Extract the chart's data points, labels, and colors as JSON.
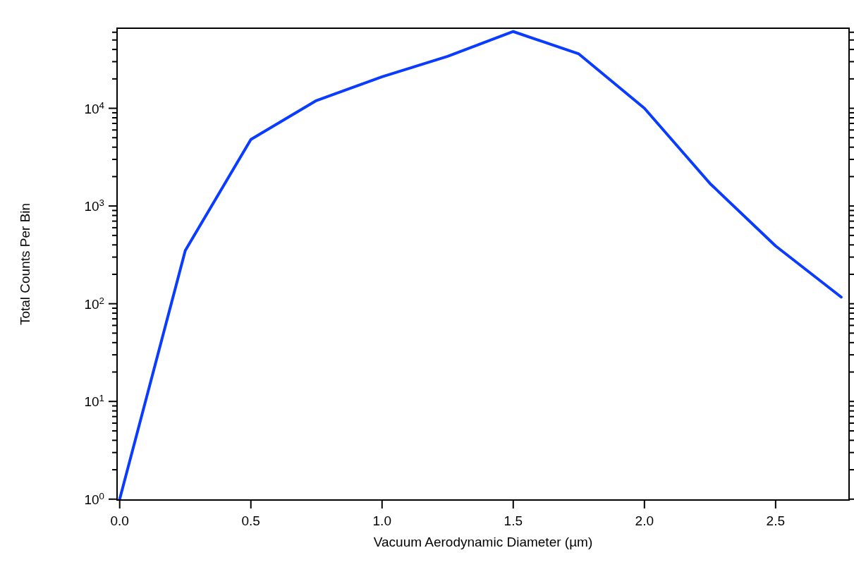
{
  "chart_data": {
    "type": "line",
    "xlabel": "Vacuum Aerodynamic Diameter (µm)",
    "ylabel": "Total Counts Per Bin",
    "log": "y",
    "grid": false,
    "marker": "none",
    "line_style": "solid",
    "x": [
      0,
      0.25,
      0.5,
      0.75,
      1.0,
      1.25,
      1.5,
      1.75,
      2.0,
      2.25,
      2.5,
      2.75
    ],
    "series": [
      {
        "color": "#0a3cff",
        "values": [
          1,
          350,
          4800,
          12000,
          21000,
          34000,
          61000,
          36000,
          10000,
          1700,
          390,
          117
        ]
      }
    ],
    "xlim": [
      -0.01,
      2.78
    ],
    "ylim": [
      0.98,
      66000
    ],
    "xticks": [
      {
        "value": 0,
        "label": "0.0"
      },
      {
        "value": 0.5,
        "label": "0.5"
      },
      {
        "value": 1,
        "label": "1.0"
      },
      {
        "value": 1.5,
        "label": "1.5"
      },
      {
        "value": 2,
        "label": "2.0"
      },
      {
        "value": 2.5,
        "label": "2.5"
      }
    ],
    "yticks": [
      {
        "value": 1,
        "label": "10$^{0}$"
      },
      {
        "value": 2,
        "label": null
      },
      {
        "value": 3,
        "label": null
      },
      {
        "value": 4,
        "label": null
      },
      {
        "value": 5,
        "label": null
      },
      {
        "value": 6,
        "label": null
      },
      {
        "value": 7,
        "label": null
      },
      {
        "value": 8,
        "label": null
      },
      {
        "value": 9,
        "label": null
      },
      {
        "value": 10,
        "label": "10$^{1}$"
      },
      {
        "value": 20,
        "label": null
      },
      {
        "value": 30,
        "label": null
      },
      {
        "value": 40,
        "label": null
      },
      {
        "value": 50,
        "label": null
      },
      {
        "value": 60,
        "label": null
      },
      {
        "value": 70,
        "label": null
      },
      {
        "value": 80,
        "label": null
      },
      {
        "value": 90,
        "label": null
      },
      {
        "value": 100,
        "label": "10$^{2}$"
      },
      {
        "value": 200,
        "label": null
      },
      {
        "value": 300,
        "label": null
      },
      {
        "value": 400,
        "label": null
      },
      {
        "value": 500,
        "label": null
      },
      {
        "value": 600,
        "label": null
      },
      {
        "value": 700,
        "label": null
      },
      {
        "value": 800,
        "label": null
      },
      {
        "value": 900,
        "label": null
      },
      {
        "value": 1000,
        "label": "10$^{3}$"
      },
      {
        "value": 2000,
        "label": null
      },
      {
        "value": 3000,
        "label": null
      },
      {
        "value": 4000,
        "label": null
      },
      {
        "value": 5000,
        "label": null
      },
      {
        "value": 6000,
        "label": null
      },
      {
        "value": 7000,
        "label": null
      },
      {
        "value": 8000,
        "label": null
      },
      {
        "value": 9000,
        "label": null
      },
      {
        "value": 10000,
        "label": "10$^{4}$"
      },
      {
        "value": 20000,
        "label": null
      },
      {
        "value": 30000,
        "label": null
      },
      {
        "value": 40000,
        "label": null
      },
      {
        "value": 50000,
        "label": null
      },
      {
        "value": 60000,
        "label": null
      }
    ]
  }
}
